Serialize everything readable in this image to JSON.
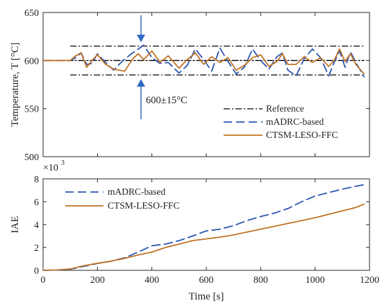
{
  "colors": {
    "reference": "#000000",
    "madrc": "#2b55b0",
    "ctsm": "#c07225",
    "arrow": "#2f6bc4",
    "band": "#000000"
  },
  "chart_data": [
    {
      "type": "line",
      "ylabel": "Temperature, T [°C]",
      "xlim": [
        0,
        1200
      ],
      "ylim": [
        500,
        650
      ],
      "yticks": [
        "500",
        "550",
        "600",
        "650"
      ],
      "legend_placement": "lower-right",
      "annotation": "600±15°C",
      "band": {
        "center": 600,
        "upper": 615,
        "lower": 585,
        "x_start": 100,
        "x_end": 1180
      },
      "series": [
        {
          "name": "Reference",
          "style": "dashdot",
          "x": [
            0,
            1180
          ],
          "y": [
            600,
            600
          ]
        },
        {
          "name": "mADRC-based",
          "style": "dashed",
          "x": [
            0,
            100,
            120,
            140,
            160,
            180,
            200,
            230,
            260,
            290,
            320,
            350,
            370,
            400,
            430,
            460,
            500,
            530,
            560,
            590,
            620,
            650,
            680,
            710,
            740,
            770,
            800,
            830,
            860,
            880,
            900,
            930,
            960,
            990,
            1020,
            1050,
            1070,
            1090,
            1110,
            1130,
            1150,
            1180
          ],
          "y": [
            600,
            600,
            603,
            608,
            596,
            597,
            607,
            598,
            590,
            599,
            606,
            612,
            616,
            603,
            597,
            598,
            587,
            595,
            612,
            601,
            589,
            613,
            599,
            586,
            593,
            612,
            600,
            591,
            604,
            608,
            590,
            584,
            602,
            612,
            603,
            584,
            598,
            610,
            593,
            609,
            598,
            583
          ]
        },
        {
          "name": "CTSM-LESO-FFC",
          "style": "solid",
          "x": [
            0,
            100,
            120,
            140,
            160,
            180,
            200,
            230,
            260,
            300,
            330,
            350,
            370,
            400,
            430,
            460,
            500,
            530,
            560,
            590,
            620,
            650,
            680,
            710,
            740,
            770,
            800,
            830,
            860,
            880,
            900,
            930,
            960,
            990,
            1020,
            1050,
            1070,
            1090,
            1110,
            1130,
            1150,
            1180
          ],
          "y": [
            600,
            600,
            605,
            608,
            593,
            600,
            606,
            596,
            591,
            589,
            602,
            607,
            601,
            610,
            598,
            605,
            592,
            601,
            608,
            596,
            604,
            598,
            603,
            590,
            595,
            603,
            606,
            594,
            599,
            607,
            596,
            596,
            604,
            598,
            603,
            594,
            600,
            612,
            599,
            607,
            596,
            586
          ]
        }
      ]
    },
    {
      "type": "line",
      "xlabel": "Time [s]",
      "ylabel": "IAE",
      "multiplier": "×10",
      "multiplier_exp": "3",
      "xlim": [
        0,
        1200
      ],
      "ylim": [
        0,
        8
      ],
      "xticks": [
        "0",
        "200",
        "400",
        "600",
        "800",
        "1000",
        "1200"
      ],
      "yticks": [
        "0",
        "2",
        "4",
        "6",
        "8"
      ],
      "legend_placement": "upper-left",
      "series": [
        {
          "name": "mADRC-based",
          "style": "dashed",
          "x": [
            0,
            50,
            100,
            150,
            200,
            250,
            300,
            350,
            400,
            450,
            500,
            550,
            600,
            650,
            700,
            750,
            800,
            850,
            900,
            950,
            1000,
            1050,
            1100,
            1150,
            1180
          ],
          "y": [
            0,
            0.03,
            0.1,
            0.35,
            0.6,
            0.8,
            1.1,
            1.6,
            2.15,
            2.3,
            2.6,
            3.0,
            3.45,
            3.6,
            3.9,
            4.35,
            4.7,
            5.0,
            5.4,
            6.0,
            6.5,
            6.8,
            7.1,
            7.35,
            7.5
          ]
        },
        {
          "name": "CTSM-LESO-FFC",
          "style": "solid",
          "x": [
            0,
            50,
            100,
            150,
            200,
            250,
            300,
            350,
            400,
            450,
            500,
            550,
            600,
            650,
            700,
            750,
            800,
            850,
            900,
            950,
            1000,
            1050,
            1100,
            1150,
            1180
          ],
          "y": [
            0,
            0.03,
            0.12,
            0.4,
            0.62,
            0.8,
            1.05,
            1.35,
            1.6,
            2.0,
            2.3,
            2.6,
            2.75,
            2.9,
            3.1,
            3.35,
            3.6,
            3.85,
            4.1,
            4.35,
            4.6,
            4.9,
            5.2,
            5.5,
            5.8
          ]
        }
      ]
    }
  ]
}
